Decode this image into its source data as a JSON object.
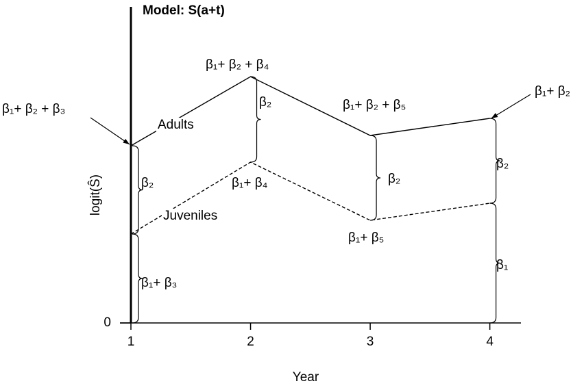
{
  "chart_data": {
    "type": "line",
    "title": "Model: S(a+t)",
    "x_label": "Year",
    "y_label": "logit(Ŝ)",
    "x": [
      1,
      2,
      3,
      4
    ],
    "xlim": [
      1,
      4.26
    ],
    "xticks": [
      1,
      2,
      3,
      4
    ],
    "ylim": [
      0,
      462
    ],
    "yticks": [
      0
    ],
    "series": [
      {
        "name": "Adults",
        "color": "#000000",
        "values": [
          259,
          360,
          274,
          299
        ]
      },
      {
        "name": "Juveniles",
        "color": "#000000",
        "values": [
          130,
          235,
          150,
          175
        ]
      }
    ],
    "annotations": [
      "β₁+ β₂ + β₃",
      "β₁+ β₂ + β₄",
      "β₂",
      "β₁+ β₄",
      "β₁+ β₂ + β₅",
      "β₂",
      "β₁+ β₅",
      "β₁+ β₂",
      "β₂",
      "β₁",
      "β₂",
      "β₁+ β₃"
    ]
  }
}
